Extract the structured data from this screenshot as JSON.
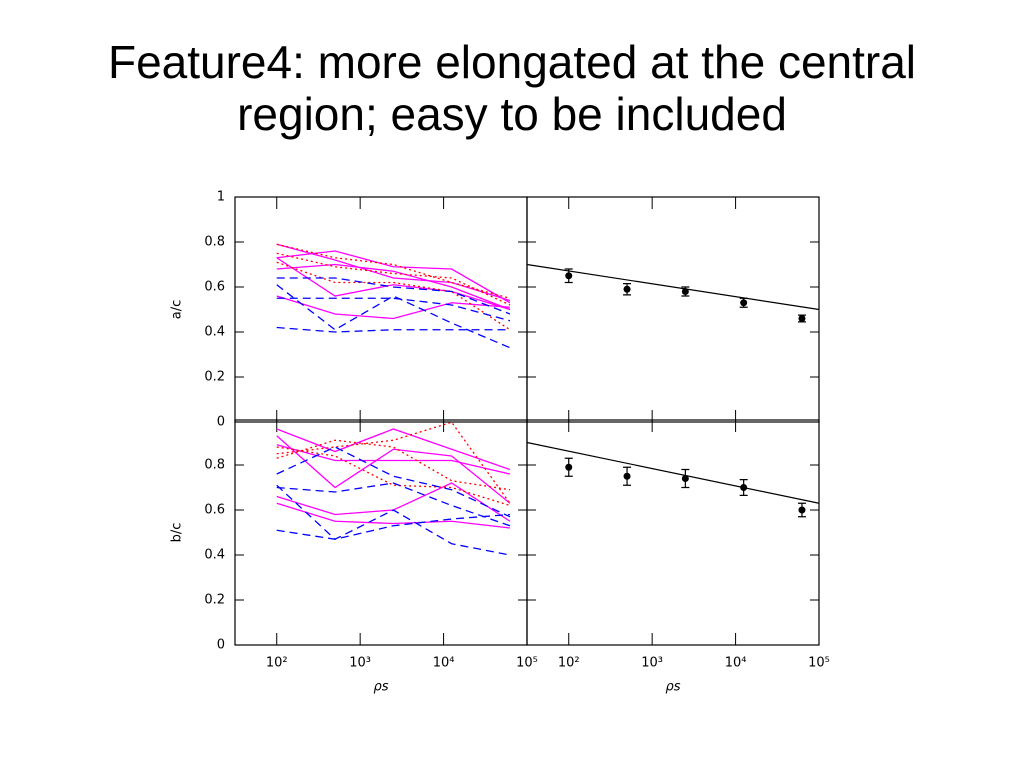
{
  "slide": {
    "title": "Feature4: more elongated at the central region; easy to be included"
  },
  "chart_data": [
    {
      "type": "line",
      "xscale": "log",
      "ylabel": "a/c",
      "xlim": [
        31.6,
        100000
      ],
      "ylim": [
        0,
        1
      ],
      "xticks": [
        100,
        1000,
        10000,
        100000
      ],
      "yticks": [
        0,
        0.2,
        0.4,
        0.6,
        0.8,
        1
      ],
      "x": [
        100,
        500,
        2500,
        12500,
        62500
      ],
      "series": [
        {
          "color": "#ff00ff",
          "dash": "solid",
          "values": [
            0.79,
            0.72,
            0.64,
            0.62,
            0.54
          ]
        },
        {
          "color": "#ff00ff",
          "dash": "solid",
          "values": [
            0.73,
            0.76,
            0.69,
            0.68,
            0.53
          ]
        },
        {
          "color": "#ff00ff",
          "dash": "solid",
          "values": [
            0.68,
            0.7,
            0.67,
            0.6,
            0.5
          ]
        },
        {
          "color": "#ff00ff",
          "dash": "solid",
          "values": [
            0.56,
            0.48,
            0.46,
            0.53,
            0.51
          ]
        },
        {
          "color": "#ff00ff",
          "dash": "solid",
          "values": [
            0.73,
            0.56,
            0.61,
            0.58,
            0.5
          ]
        },
        {
          "color": "#ff0000",
          "dash": "dotted",
          "values": [
            0.79,
            0.73,
            0.7,
            0.62,
            0.55
          ]
        },
        {
          "color": "#ff0000",
          "dash": "dotted",
          "values": [
            0.75,
            0.69,
            0.66,
            0.64,
            0.52
          ]
        },
        {
          "color": "#ff0000",
          "dash": "dotted",
          "values": [
            0.71,
            0.62,
            0.62,
            0.58,
            0.41
          ]
        },
        {
          "color": "#0000ff",
          "dash": "dashed",
          "values": [
            0.64,
            0.64,
            0.6,
            0.58,
            0.48
          ]
        },
        {
          "color": "#0000ff",
          "dash": "dashed",
          "values": [
            0.61,
            0.41,
            0.56,
            0.44,
            0.33
          ]
        },
        {
          "color": "#0000ff",
          "dash": "dashed",
          "values": [
            0.55,
            0.55,
            0.55,
            0.52,
            0.45
          ]
        },
        {
          "color": "#0000ff",
          "dash": "dashed",
          "values": [
            0.42,
            0.4,
            0.41,
            0.41,
            0.41
          ]
        }
      ]
    },
    {
      "type": "errorbar",
      "xscale": "log",
      "xlim": [
        31.6,
        100000
      ],
      "ylim": [
        0,
        1
      ],
      "xticks": [
        100,
        1000,
        10000,
        100000
      ],
      "yticks": [
        0,
        0.2,
        0.4,
        0.6,
        0.8,
        1
      ],
      "x": [
        100,
        500,
        2500,
        12500,
        62500
      ],
      "values": [
        0.65,
        0.59,
        0.58,
        0.53,
        0.46
      ],
      "errors": [
        0.03,
        0.025,
        0.02,
        0.02,
        0.015
      ],
      "color": "#000000",
      "fit": {
        "x": [
          31.6,
          100000
        ],
        "values": [
          0.7,
          0.5
        ]
      }
    },
    {
      "type": "line",
      "xscale": "log",
      "ylabel": "b/c",
      "xlabel": "ρs",
      "xlim": [
        31.6,
        100000
      ],
      "ylim": [
        0,
        1
      ],
      "xticks": [
        {
          "value": 100,
          "label": "10²"
        },
        {
          "value": 1000,
          "label": "10³"
        },
        {
          "value": 10000,
          "label": "10⁴"
        },
        {
          "value": 100000,
          "label": "10⁵"
        }
      ],
      "yticks": [
        0,
        0.2,
        0.4,
        0.6,
        0.8
      ],
      "x": [
        100,
        500,
        2500,
        12500,
        62500
      ],
      "series": [
        {
          "color": "#ff00ff",
          "dash": "solid",
          "values": [
            0.96,
            0.86,
            0.96,
            0.87,
            0.78
          ]
        },
        {
          "color": "#ff00ff",
          "dash": "solid",
          "values": [
            0.93,
            0.7,
            0.87,
            0.84,
            0.63
          ]
        },
        {
          "color": "#ff00ff",
          "dash": "solid",
          "values": [
            0.89,
            0.82,
            0.82,
            0.82,
            0.76
          ]
        },
        {
          "color": "#ff00ff",
          "dash": "solid",
          "values": [
            0.66,
            0.58,
            0.6,
            0.72,
            0.55
          ]
        },
        {
          "color": "#ff00ff",
          "dash": "solid",
          "values": [
            0.63,
            0.55,
            0.54,
            0.55,
            0.52
          ]
        },
        {
          "color": "#ff0000",
          "dash": "dotted",
          "values": [
            0.85,
            0.88,
            0.91,
            0.99,
            0.63
          ]
        },
        {
          "color": "#ff0000",
          "dash": "dotted",
          "values": [
            0.83,
            0.91,
            0.88,
            0.73,
            0.69
          ]
        },
        {
          "color": "#ff0000",
          "dash": "dotted",
          "values": [
            0.88,
            0.84,
            0.71,
            0.7,
            0.62
          ]
        },
        {
          "color": "#0000ff",
          "dash": "dashed",
          "values": [
            0.76,
            0.88,
            0.75,
            0.69,
            0.57
          ]
        },
        {
          "color": "#0000ff",
          "dash": "dashed",
          "values": [
            0.7,
            0.68,
            0.72,
            0.62,
            0.53
          ]
        },
        {
          "color": "#0000ff",
          "dash": "dashed",
          "values": [
            0.71,
            0.47,
            0.6,
            0.45,
            0.4
          ]
        },
        {
          "color": "#0000ff",
          "dash": "dashed",
          "values": [
            0.51,
            0.47,
            0.53,
            0.56,
            0.58
          ]
        }
      ]
    },
    {
      "type": "errorbar",
      "xscale": "log",
      "xlabel": "ρs",
      "xlim": [
        31.6,
        100000
      ],
      "ylim": [
        0,
        1
      ],
      "xticks": [
        {
          "value": 100,
          "label": "10²"
        },
        {
          "value": 1000,
          "label": "10³"
        },
        {
          "value": 10000,
          "label": "10⁴"
        },
        {
          "value": 100000,
          "label": "10⁵"
        }
      ],
      "yticks": [
        0,
        0.2,
        0.4,
        0.6,
        0.8
      ],
      "x": [
        100,
        500,
        2500,
        12500,
        62500
      ],
      "values": [
        0.79,
        0.75,
        0.74,
        0.7,
        0.6
      ],
      "errors": [
        0.04,
        0.04,
        0.04,
        0.035,
        0.03
      ],
      "color": "#000000",
      "fit": {
        "x": [
          31.6,
          100000
        ],
        "values": [
          0.9,
          0.63
        ]
      }
    }
  ]
}
